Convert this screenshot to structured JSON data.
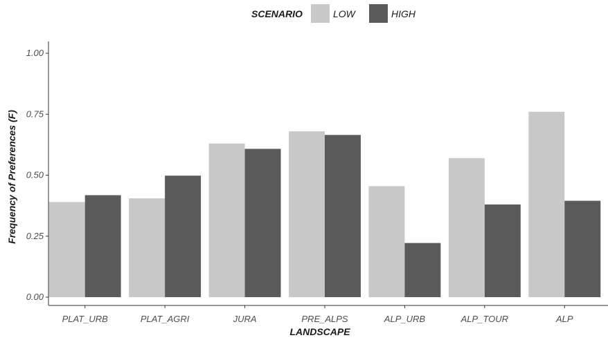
{
  "chart_data": {
    "type": "bar",
    "categories": [
      "PLAT_URB",
      "PLAT_AGRI",
      "JURA",
      "PRE_ALPS",
      "ALP_URB",
      "ALP_TOUR",
      "ALP"
    ],
    "series": [
      {
        "name": "LOW",
        "color": "#c8c8c8",
        "values": [
          0.39,
          0.405,
          0.63,
          0.68,
          0.455,
          0.57,
          0.76
        ]
      },
      {
        "name": "HIGH",
        "color": "#5a5a5a",
        "values": [
          0.418,
          0.498,
          0.608,
          0.665,
          0.222,
          0.38,
          0.395
        ]
      }
    ],
    "xlabel": "LANDSCAPE",
    "ylabel": "Frequency of Preferences (F)",
    "ylim": [
      0,
      1.0
    ],
    "yticks": [
      "0.00",
      "0.25",
      "0.50",
      "0.75",
      "1.00"
    ],
    "ytick_values": [
      0,
      0.25,
      0.5,
      0.75,
      1.0
    ],
    "grid": false,
    "legend": {
      "title": "SCENARIO",
      "placement": "top-center",
      "labels": [
        "LOW",
        "HIGH"
      ]
    }
  }
}
